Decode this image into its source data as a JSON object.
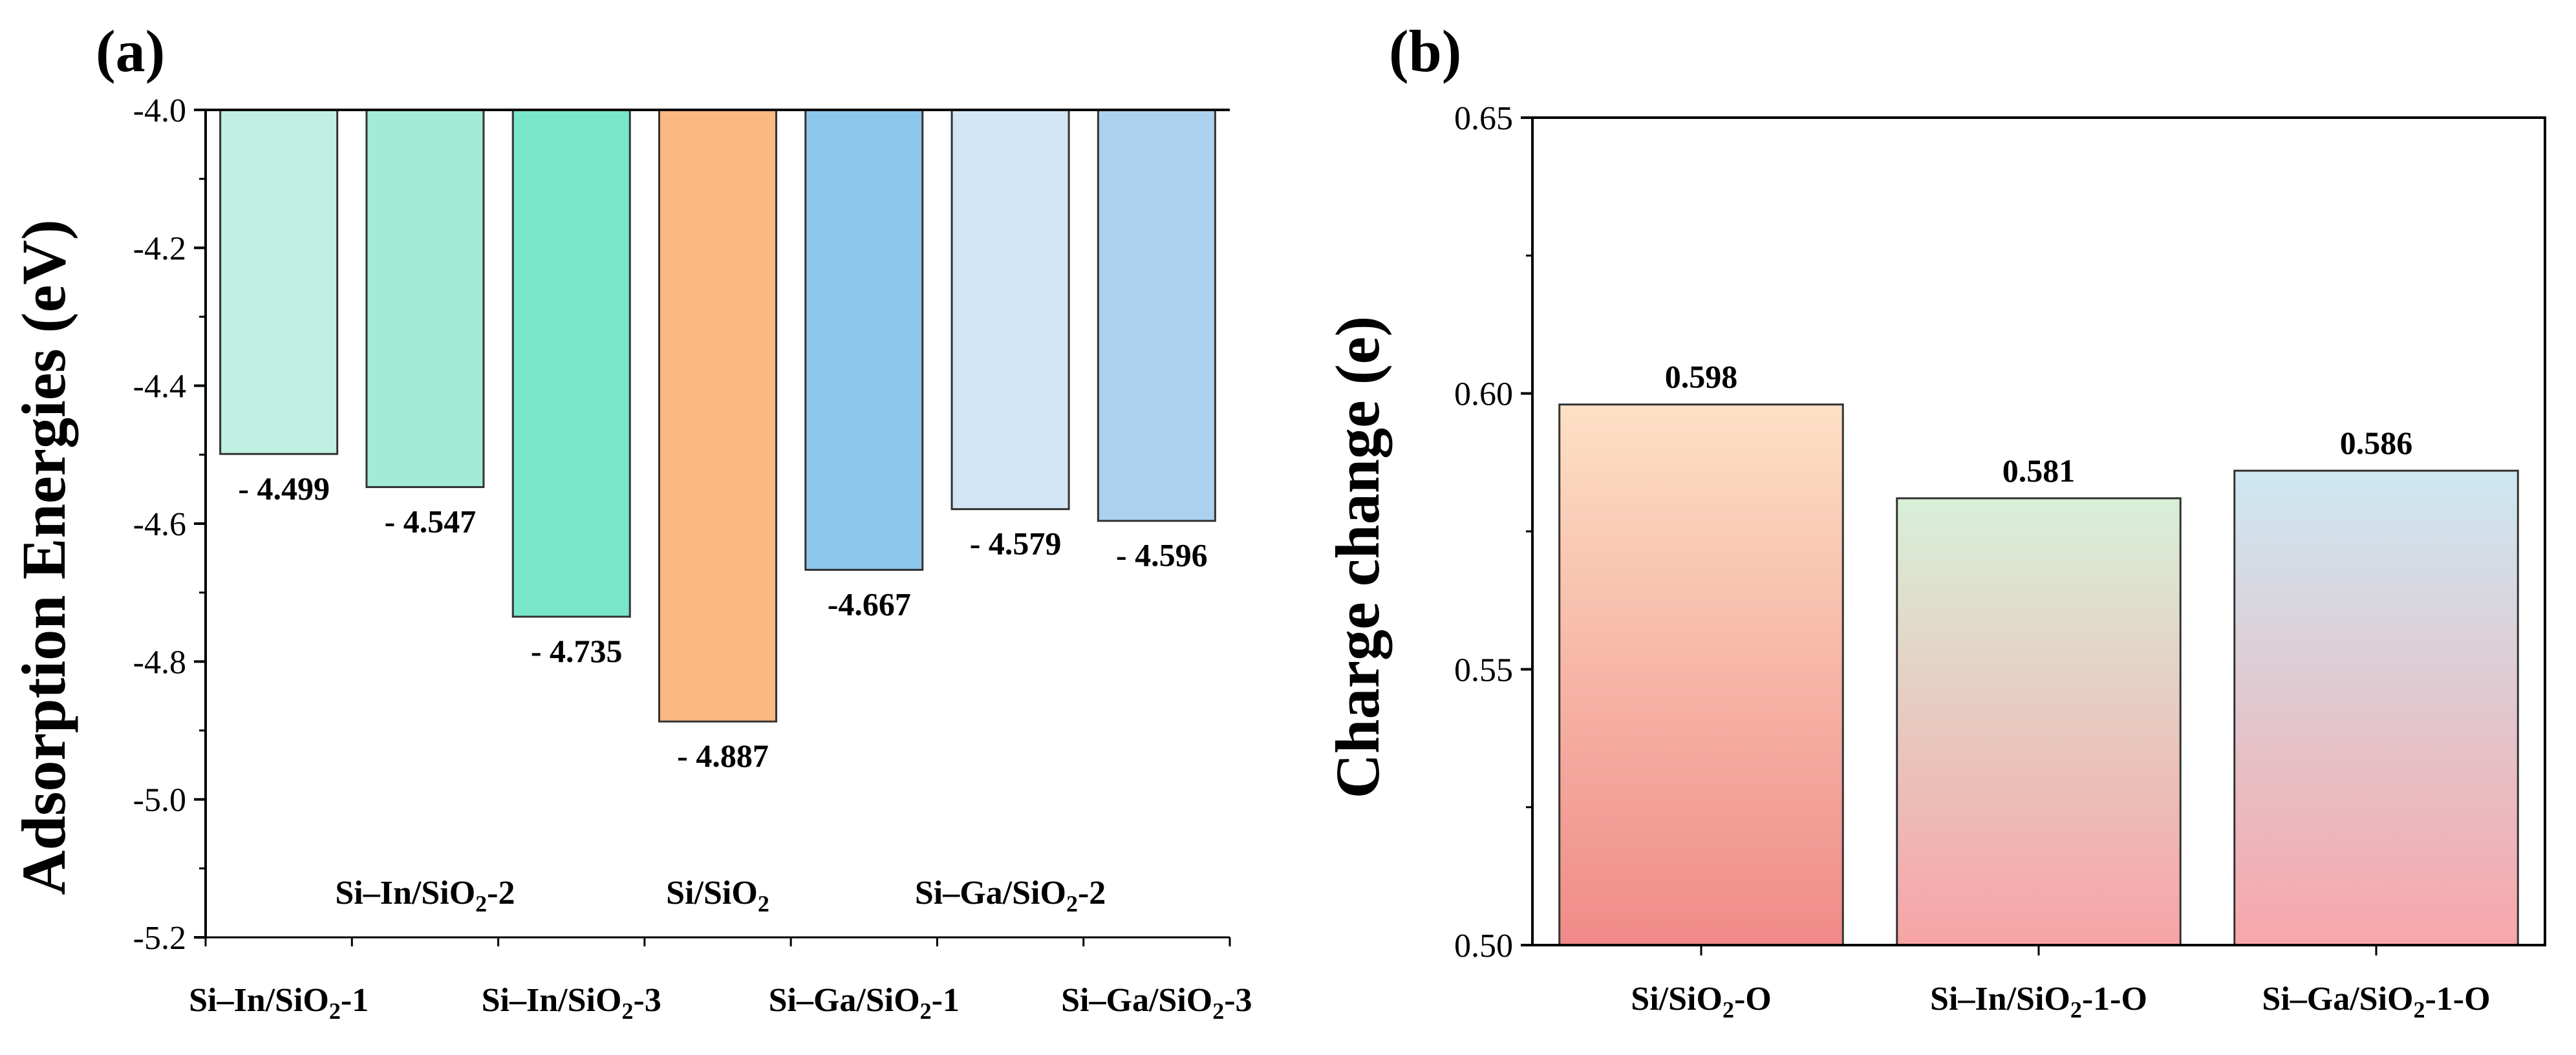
{
  "chart_data": [
    {
      "panel": "(a)",
      "type": "bar",
      "ylabel": "Adsorption Energies (eV)",
      "ylim": [
        -5.2,
        -4.0
      ],
      "yticks": [
        "-4.0",
        "-4.2",
        "-4.4",
        "-4.6",
        "-4.8",
        "-5.0",
        "-5.2"
      ],
      "ytick_values": [
        -4.0,
        -4.2,
        -4.4,
        -4.6,
        -4.8,
        -5.0,
        -5.2
      ],
      "categories": [
        {
          "name": "Si–In/SiO",
          "sub": "2",
          "suffix": "-1"
        },
        {
          "name": "Si–In/SiO",
          "sub": "2",
          "suffix": "-2"
        },
        {
          "name": "Si–In/SiO",
          "sub": "2",
          "suffix": "-3"
        },
        {
          "name": "Si/SiO",
          "sub": "2",
          "suffix": ""
        },
        {
          "name": "Si–Ga/SiO",
          "sub": "2",
          "suffix": "-1"
        },
        {
          "name": "Si–Ga/SiO",
          "sub": "2",
          "suffix": "-2"
        },
        {
          "name": "Si–Ga/SiO",
          "sub": "2",
          "suffix": "-3"
        }
      ],
      "values": [
        -4.499,
        -4.547,
        -4.735,
        -4.887,
        -4.667,
        -4.579,
        -4.596
      ],
      "data_labels": [
        "- 4.499",
        "- 4.547",
        "- 4.735",
        "- 4.887",
        "-4.667",
        "- 4.579",
        "- 4.596"
      ],
      "colors": [
        "#bff0e2",
        "#a3ebd7",
        "#78e6c8",
        "#fbb880",
        "#8ec5ea",
        "#d2e6f5",
        "#acd1ef"
      ]
    },
    {
      "panel": "(b)",
      "type": "bar",
      "ylabel": "Charge change (e)",
      "ylim": [
        0.5,
        0.65
      ],
      "yticks": [
        "0.50",
        "0.55",
        "0.60",
        "0.65"
      ],
      "ytick_values": [
        0.5,
        0.55,
        0.6,
        0.65
      ],
      "categories": [
        {
          "name": "Si/SiO",
          "sub": "2",
          "suffix": "-O"
        },
        {
          "name": "Si–In/SiO",
          "sub": "2",
          "suffix": "-1-O"
        },
        {
          "name": "Si–Ga/SiO",
          "sub": "2",
          "suffix": "-1-O"
        }
      ],
      "values": [
        0.598,
        0.581,
        0.586
      ],
      "data_labels": [
        "0.598",
        "0.581",
        "0.586"
      ],
      "gradients": [
        {
          "top": "#fde0c6",
          "bottom": "#f08a89"
        },
        {
          "top": "#d8f0d8",
          "bottom": "#f7a3a6"
        },
        {
          "top": "#cde8f2",
          "bottom": "#f7a6aa"
        }
      ]
    }
  ]
}
